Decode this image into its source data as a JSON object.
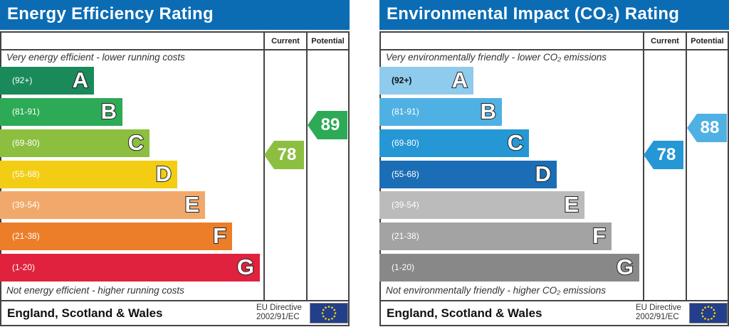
{
  "chart_data": [
    {
      "type": "bar",
      "title": "Energy Efficiency Rating",
      "columns": [
        "Current",
        "Potential"
      ],
      "top_note": "Very energy efficient - lower running costs",
      "bottom_note": "Not energy efficient - higher running costs",
      "bands": [
        {
          "letter": "A",
          "range": "(92+)",
          "color": "#1a8a5a"
        },
        {
          "letter": "B",
          "range": "(81-91)",
          "color": "#2daa56"
        },
        {
          "letter": "C",
          "range": "(69-80)",
          "color": "#8cbf3f"
        },
        {
          "letter": "D",
          "range": "(55-68)",
          "color": "#f3cd13"
        },
        {
          "letter": "E",
          "range": "(39-54)",
          "color": "#f1a96b"
        },
        {
          "letter": "F",
          "range": "(21-38)",
          "color": "#ec7e2a"
        },
        {
          "letter": "G",
          "range": "(1-20)",
          "color": "#e0223e"
        }
      ],
      "current": {
        "value": "78",
        "band": "C"
      },
      "potential": {
        "value": "89",
        "band": "B"
      },
      "footer": "England, Scotland & Wales",
      "directive": [
        "EU Directive",
        "2002/91/EC"
      ]
    },
    {
      "type": "bar",
      "title": "Environmental Impact (CO₂) Rating",
      "columns": [
        "Current",
        "Potential"
      ],
      "top_note": "Very environmentally friendly - lower CO₂ emissions",
      "bottom_note": "Not environmentally friendly - higher CO₂ emissions",
      "bands": [
        {
          "letter": "A",
          "range": "(92+)",
          "color": "#8fcbec"
        },
        {
          "letter": "B",
          "range": "(81-91)",
          "color": "#4fb1e3"
        },
        {
          "letter": "C",
          "range": "(69-80)",
          "color": "#2597d4"
        },
        {
          "letter": "D",
          "range": "(55-68)",
          "color": "#1b6db5"
        },
        {
          "letter": "E",
          "range": "(39-54)",
          "color": "#bbbbbb"
        },
        {
          "letter": "F",
          "range": "(21-38)",
          "color": "#a3a3a3"
        },
        {
          "letter": "G",
          "range": "(1-20)",
          "color": "#888888"
        }
      ],
      "current": {
        "value": "78",
        "band": "C"
      },
      "potential": {
        "value": "88",
        "band": "B"
      },
      "footer": "England, Scotland & Wales",
      "directive": [
        "EU Directive",
        "2002/91/EC"
      ]
    }
  ]
}
